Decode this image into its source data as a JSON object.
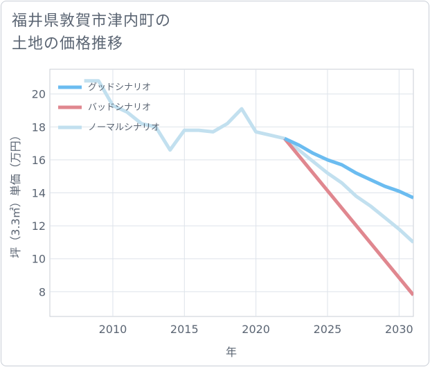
{
  "page": {
    "title": "福井県敦賀市津内町の\n土地の価格推移"
  },
  "chart_data": {
    "type": "line",
    "xlabel": "年",
    "ylabel": "坪（3.3㎡）単価（万円）",
    "xlim": [
      2005.6,
      2031
    ],
    "ylim": [
      6.5,
      21.5
    ],
    "x_ticks": [
      2010,
      2015,
      2020,
      2025,
      2030
    ],
    "y_ticks": [
      8,
      10,
      12,
      14,
      16,
      18,
      20
    ],
    "grid": true,
    "legend_position": "top-left",
    "series": [
      {
        "name": "グッドシナリオ",
        "color": "#6bbcf0",
        "x": [
          2022,
          2023,
          2024,
          2025,
          2026,
          2027,
          2028,
          2029,
          2030,
          2031
        ],
        "y": [
          17.3,
          16.9,
          16.4,
          16.0,
          15.7,
          15.2,
          14.8,
          14.4,
          14.1,
          13.7
        ]
      },
      {
        "name": "バッドシナリオ",
        "color": "#e0878f",
        "x": [
          2022,
          2031
        ],
        "y": [
          17.3,
          7.8
        ]
      },
      {
        "name": "ノーマルシナリオ",
        "color": "#c2e0ef",
        "x": [
          2008,
          2009,
          2010,
          2011,
          2012,
          2013,
          2014,
          2015,
          2016,
          2017,
          2018,
          2019,
          2020,
          2021,
          2022,
          2023,
          2024,
          2025,
          2026,
          2027,
          2028,
          2029,
          2030,
          2031
        ],
        "y": [
          20.8,
          20.8,
          19.3,
          18.9,
          18.2,
          18.0,
          16.6,
          17.8,
          17.8,
          17.7,
          18.2,
          19.1,
          17.7,
          17.5,
          17.3,
          16.6,
          15.9,
          15.2,
          14.6,
          13.8,
          13.2,
          12.5,
          11.8,
          11.0
        ]
      }
    ]
  }
}
